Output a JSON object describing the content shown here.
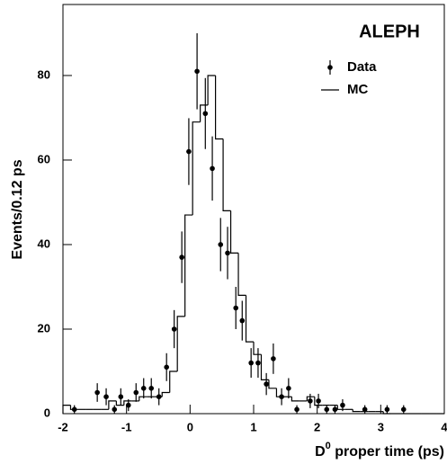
{
  "chart_data": {
    "type": "histogram",
    "annotation": "ALEPH",
    "ylabel": "Events/0.12 ps",
    "xlabel": {
      "base": "D",
      "sup": "0",
      "rest": " proper time (ps)"
    },
    "xlim": [
      -2,
      4
    ],
    "ylim": [
      0,
      96.8
    ],
    "xticks": [
      -2,
      -1,
      0,
      1,
      2,
      3,
      4
    ],
    "yticks": [
      0,
      20,
      40,
      60,
      80
    ],
    "color": "#000000",
    "series": [
      {
        "name": "Data",
        "type": "errorbar",
        "x": [
          -1.82,
          -1.46,
          -1.32,
          -1.19,
          -1.09,
          -0.97,
          -0.85,
          -0.73,
          -0.61,
          -0.49,
          -0.37,
          -0.25,
          -0.13,
          -0.02,
          0.11,
          0.24,
          0.35,
          0.48,
          0.59,
          0.72,
          0.82,
          0.96,
          1.07,
          1.2,
          1.31,
          1.44,
          1.55,
          1.68,
          1.89,
          2.02,
          2.15,
          2.28,
          2.4,
          2.75,
          3.1,
          3.36
        ],
        "values": [
          1,
          5,
          4,
          1,
          4,
          2,
          5,
          6,
          6,
          4,
          11,
          20,
          37,
          62,
          81,
          71,
          58,
          40,
          38,
          25,
          22,
          12,
          12,
          7,
          13,
          4,
          6,
          1,
          3,
          3,
          1,
          1,
          2,
          1,
          1,
          1
        ],
        "errors": [
          1,
          2.2,
          2,
          1,
          2,
          1.4,
          2.2,
          2.4,
          2.4,
          2,
          3.3,
          4.5,
          6.1,
          7.9,
          9,
          8.4,
          7.6,
          6.3,
          6.2,
          5,
          4.7,
          3.5,
          3.5,
          2.6,
          3.6,
          2,
          2.4,
          1,
          1.7,
          1.7,
          1,
          1,
          1.4,
          1,
          1,
          1
        ]
      },
      {
        "name": "MC",
        "type": "step",
        "bins": [
          -2,
          -1.88,
          -1.76,
          -1.64,
          -1.52,
          -1.4,
          -1.28,
          -1.16,
          -1.04,
          -0.92,
          -0.8,
          -0.68,
          -0.56,
          -0.44,
          -0.32,
          -0.2,
          -0.08,
          0.04,
          0.16,
          0.28,
          0.4,
          0.52,
          0.64,
          0.76,
          0.88,
          1,
          1.12,
          1.24,
          1.36,
          1.48,
          1.6,
          1.72,
          1.84,
          1.96,
          2.08,
          2.2,
          2.32,
          2.44,
          2.56,
          2.68,
          2.8,
          2.92,
          3.04,
          3.16,
          3.28,
          3.4,
          3.52,
          3.64,
          3.76,
          3.88,
          4
        ],
        "values": [
          2,
          1,
          1,
          1,
          1,
          1,
          3,
          2,
          3,
          3,
          4,
          4,
          4,
          5,
          10,
          23,
          47,
          69,
          73,
          80,
          65,
          48,
          38,
          28,
          17,
          14,
          8,
          6,
          4,
          4,
          3,
          3,
          4,
          2,
          2,
          2,
          1,
          1,
          0.5,
          0.5,
          0.5,
          0.5,
          0,
          0,
          0,
          0,
          0,
          0,
          0,
          0
        ]
      }
    ]
  }
}
